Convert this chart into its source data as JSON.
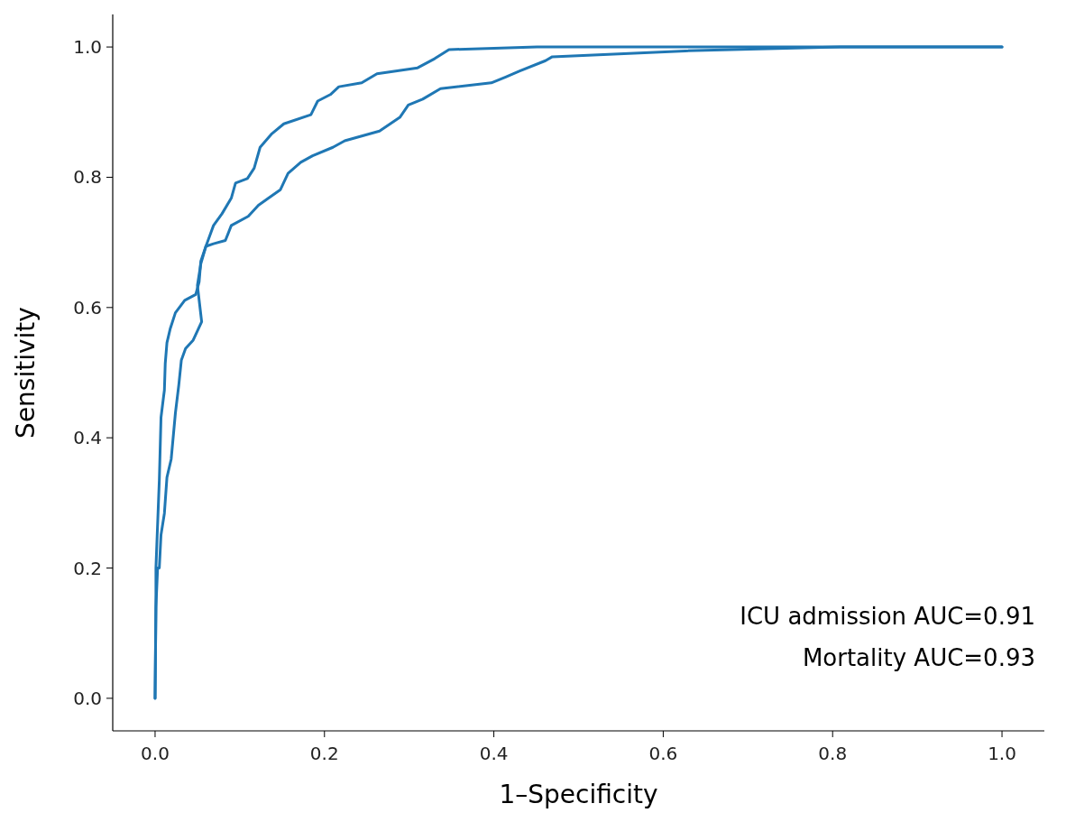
{
  "chart_data": {
    "type": "line",
    "xlabel": "1–Specificity",
    "ylabel": "Sensitivity",
    "xlim": [
      -0.05,
      1.05
    ],
    "ylim": [
      -0.05,
      1.05
    ],
    "xticks": [
      {
        "value": 0,
        "label": "0.0"
      },
      {
        "value": 0.2,
        "label": "0.2"
      },
      {
        "value": 0.4,
        "label": "0.4"
      },
      {
        "value": 0.6,
        "label": "0.6"
      },
      {
        "value": 0.8,
        "label": "0.8"
      },
      {
        "value": 1,
        "label": "1.0"
      }
    ],
    "yticks": [
      {
        "value": 0,
        "label": "0.0"
      },
      {
        "value": 0.2,
        "label": "0.2"
      },
      {
        "value": 0.4,
        "label": "0.4"
      },
      {
        "value": 0.6,
        "label": "0.6"
      },
      {
        "value": 0.8,
        "label": "0.8"
      },
      {
        "value": 1,
        "label": "1.0"
      }
    ],
    "grid": false,
    "marker": "none",
    "line_style": "solid",
    "annotations": [
      "ICU admission AUC=0.91",
      "Mortality AUC=0.93"
    ],
    "series": [
      {
        "color": "#1f77b4",
        "x": [
          0,
          0.001,
          0.003,
          0.005,
          0.007,
          0.011,
          0.014,
          0.019,
          0.024,
          0.028,
          0.031,
          0.036,
          0.045,
          0.055,
          0.05,
          0.054,
          0.06,
          0.069,
          0.079,
          0.09,
          0.095,
          0.109,
          0.117,
          0.124,
          0.138,
          0.152,
          0.184,
          0.192,
          0.207,
          0.217,
          0.244,
          0.262,
          0.31,
          0.33,
          0.347,
          0.451,
          1.0
        ],
        "values": [
          0,
          0.14,
          0.2,
          0.2,
          0.251,
          0.284,
          0.339,
          0.367,
          0.438,
          0.481,
          0.519,
          0.537,
          0.55,
          0.578,
          0.634,
          0.667,
          0.694,
          0.726,
          0.744,
          0.768,
          0.791,
          0.798,
          0.814,
          0.846,
          0.867,
          0.882,
          0.896,
          0.917,
          0.927,
          0.939,
          0.945,
          0.959,
          0.968,
          0.982,
          0.996,
          1.0,
          1.0
        ]
      },
      {
        "color": "#1f77b4",
        "x": [
          0,
          0.001,
          0.001,
          0.005,
          0.007,
          0.01,
          0.011,
          0.012,
          0.014,
          0.018,
          0.024,
          0.035,
          0.048,
          0.052,
          0.054,
          0.06,
          0.069,
          0.083,
          0.09,
          0.11,
          0.122,
          0.134,
          0.148,
          0.157,
          0.172,
          0.186,
          0.21,
          0.224,
          0.265,
          0.289,
          0.299,
          0.316,
          0.337,
          0.397,
          0.414,
          0.43,
          0.461,
          0.469,
          0.626,
          0.809,
          1.0
        ],
        "values": [
          0,
          0.141,
          0.2,
          0.335,
          0.431,
          0.463,
          0.473,
          0.514,
          0.546,
          0.568,
          0.592,
          0.611,
          0.62,
          0.639,
          0.671,
          0.694,
          0.698,
          0.703,
          0.726,
          0.74,
          0.757,
          0.768,
          0.781,
          0.806,
          0.823,
          0.833,
          0.846,
          0.856,
          0.871,
          0.892,
          0.911,
          0.92,
          0.936,
          0.945,
          0.954,
          0.963,
          0.979,
          0.985,
          0.994,
          1.0,
          1.0
        ]
      }
    ]
  }
}
